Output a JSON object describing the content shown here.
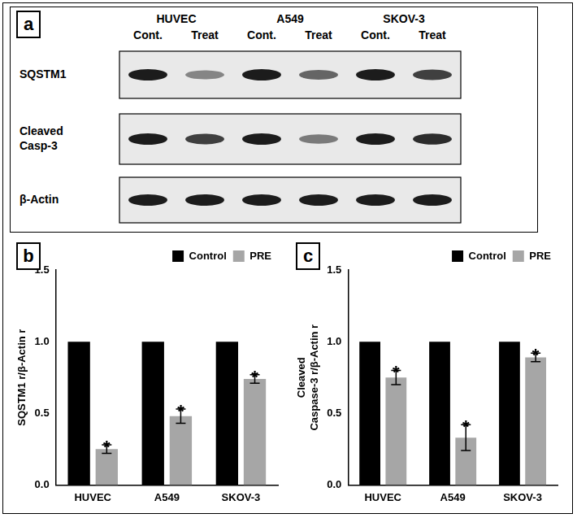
{
  "blot": {
    "panel": "a",
    "cell_lines": [
      "HUVEC",
      "A549",
      "SKOV-3"
    ],
    "conditions": [
      "Cont.",
      "Treat"
    ],
    "rows": [
      [
        "SQSTM1"
      ],
      [
        "Cleaved",
        "Casp-3"
      ],
      [
        "β-Actin"
      ]
    ]
  },
  "chart_data": [
    {
      "type": "bar",
      "annotations": [
        "b"
      ],
      "y_label": [
        "SQSTM1 r/β-Actin r"
      ],
      "categories": [
        "HUVEC",
        "A549",
        "SKOV-3"
      ],
      "series": [
        {
          "name": "Control",
          "color": "#000000",
          "values": [
            1.0,
            1.0,
            1.0
          ]
        },
        {
          "name": "PRE",
          "color": "#a6a6a6",
          "values": [
            0.25,
            0.48,
            0.74
          ],
          "errors": [
            0.03,
            0.05,
            0.03
          ],
          "significance": [
            "*",
            "*",
            "*"
          ]
        }
      ],
      "ylim": [
        0,
        1.5
      ],
      "yticks": [
        {
          "value": 0,
          "label": "0.0"
        },
        {
          "value": 0.5,
          "label": "0.5"
        },
        {
          "value": 1.0,
          "label": "1.0"
        },
        {
          "value": 1.5,
          "label": "1.5"
        }
      ],
      "grid": false,
      "legend": "upper right"
    },
    {
      "type": "bar",
      "annotations": [
        "c"
      ],
      "y_label": [
        "Cleaved",
        "Caspase-3 r/β-Actin r"
      ],
      "categories": [
        "HUVEC",
        "A549",
        "SKOV-3"
      ],
      "series": [
        {
          "name": "Control",
          "color": "#000000",
          "values": [
            1.0,
            1.0,
            1.0
          ]
        },
        {
          "name": "PRE",
          "color": "#a6a6a6",
          "values": [
            0.75,
            0.33,
            0.89
          ],
          "errors": [
            0.05,
            0.09,
            0.03
          ],
          "significance": [
            "*",
            "*",
            "*"
          ]
        }
      ],
      "ylim": [
        0,
        1.5
      ],
      "yticks": [
        {
          "value": 0,
          "label": "0.0"
        },
        {
          "value": 0.5,
          "label": "0.5"
        },
        {
          "value": 1.0,
          "label": "1.0"
        },
        {
          "value": 1.5,
          "label": "1.5"
        }
      ],
      "grid": false,
      "legend": "upper right"
    }
  ]
}
